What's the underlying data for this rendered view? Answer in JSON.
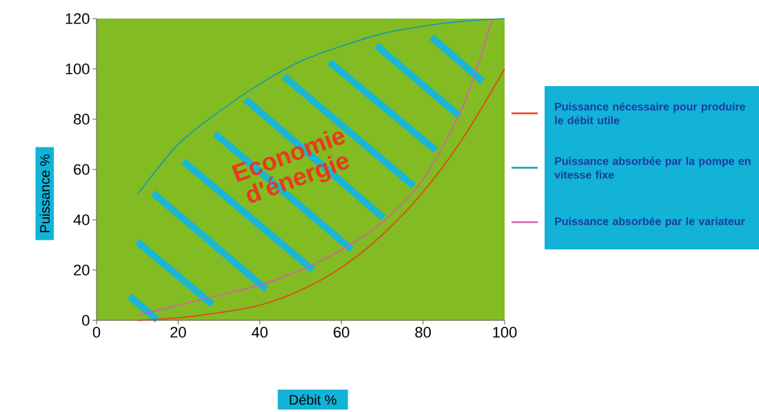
{
  "chart_data": {
    "type": "line",
    "xlabel": "Débit %",
    "ylabel": "Puissance %",
    "xlim": [
      0,
      100
    ],
    "ylim": [
      0,
      120
    ],
    "xticks": [
      0,
      20,
      40,
      60,
      80,
      100
    ],
    "yticks": [
      0,
      20,
      40,
      60,
      80,
      100,
      120
    ],
    "grid": false,
    "legend": "right",
    "line_style": "solid",
    "marker": "none",
    "annotations": [
      "Economie d'énergie"
    ],
    "series": [
      {
        "name": "Puissance nécessaire pour produire le débit utile",
        "color": "#e8401c",
        "x": [
          10,
          20,
          30,
          40,
          50,
          60,
          70,
          80,
          90,
          100
        ],
        "values": [
          0,
          1,
          3,
          6,
          12,
          21,
          34,
          51,
          73,
          100
        ]
      },
      {
        "name": "Puissance absorbée par la pompe en vitesse fixe",
        "color": "#1499b0",
        "x": [
          10,
          20,
          30,
          40,
          50,
          60,
          70,
          80,
          90,
          100
        ],
        "values": [
          50,
          70,
          83,
          94,
          103,
          109,
          114,
          117,
          119,
          120
        ]
      },
      {
        "name": "Puissance absorbée par le variateur",
        "color": "#d95bb0",
        "x": [
          10,
          20,
          30,
          40,
          50,
          60,
          70,
          80,
          90,
          97
        ],
        "values": [
          2,
          6,
          10,
          14,
          20,
          28,
          39,
          56,
          86,
          120
        ]
      }
    ]
  }
}
